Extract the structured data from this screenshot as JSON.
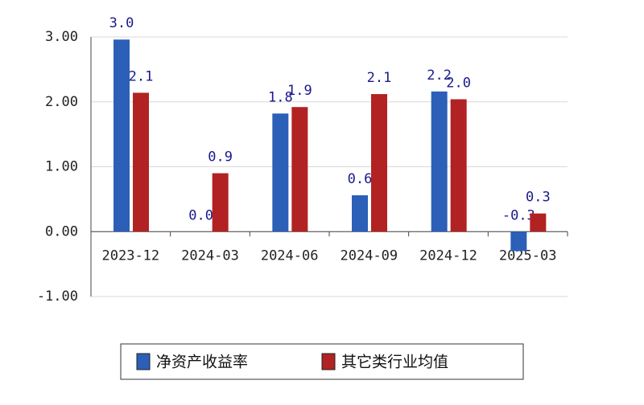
{
  "chart_data": {
    "type": "bar",
    "categories": [
      "2023-12",
      "2024-03",
      "2024-06",
      "2024-09",
      "2024-12",
      "2025-03"
    ],
    "series": [
      {
        "name": "净资产收益率",
        "color": "#2b5fb8",
        "values": [
          2.96,
          0,
          1.82,
          0.56,
          2.16,
          -0.3
        ],
        "value_labels": [
          "3.0",
          "0.0",
          "1.8",
          "0.6",
          "2.2",
          "-0.3"
        ]
      },
      {
        "name": "其它类行业均值",
        "color": "#b22222",
        "values": [
          2.14,
          0.9,
          1.92,
          2.12,
          2.04,
          0.28
        ],
        "value_labels": [
          "2.1",
          "0.9",
          "1.9",
          "2.1",
          "2.0",
          "0.3"
        ]
      }
    ],
    "ylim": [
      -1,
      3
    ],
    "yticks": [
      {
        "value": -1,
        "label": "-1.00"
      },
      {
        "value": 0,
        "label": "0.00"
      },
      {
        "value": 1,
        "label": "1.00"
      },
      {
        "value": 2,
        "label": "2.00"
      },
      {
        "value": 3,
        "label": "3.00"
      }
    ],
    "grid": true
  }
}
